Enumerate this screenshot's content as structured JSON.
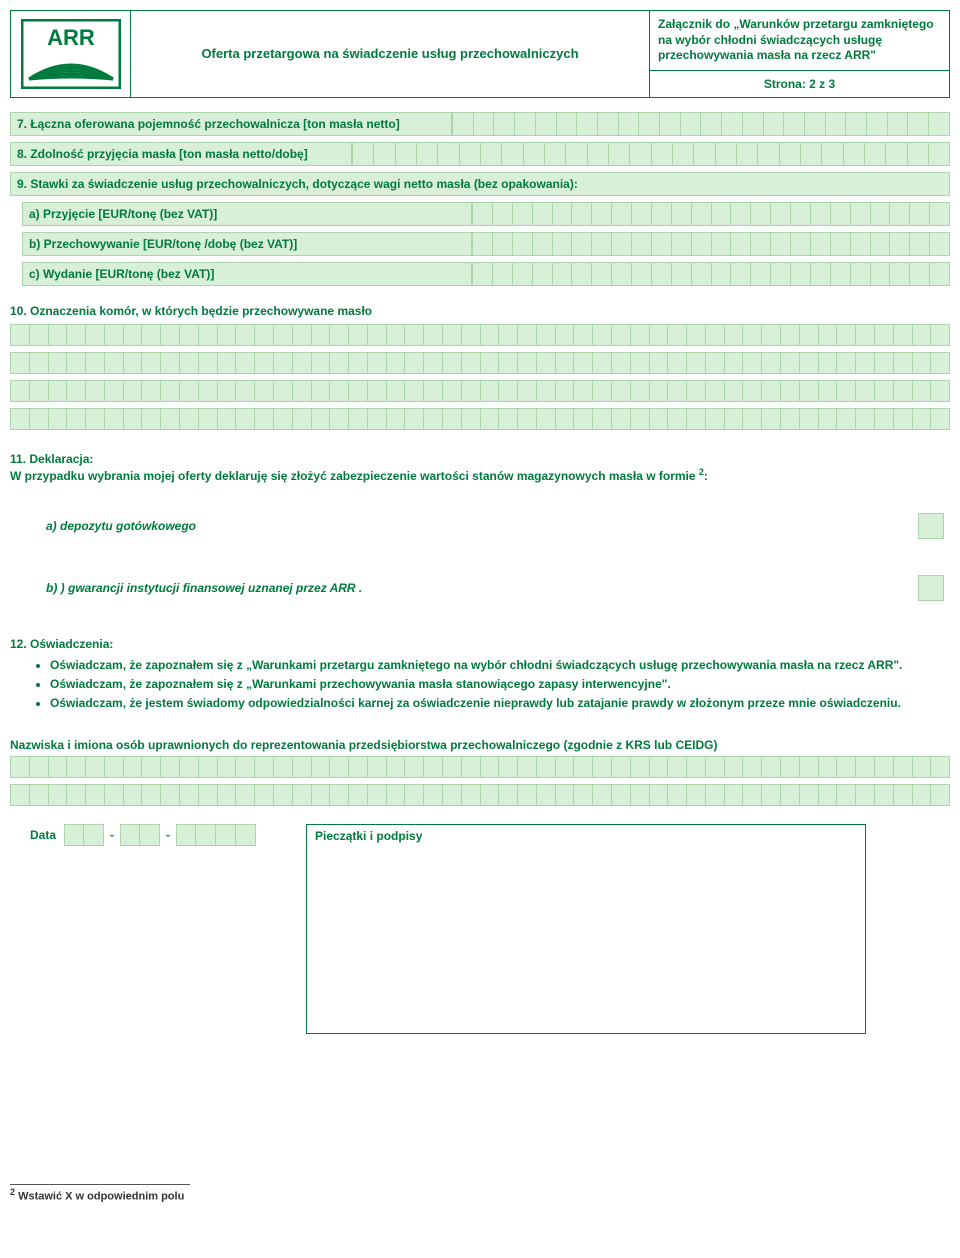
{
  "header": {
    "logo_text": "ARR",
    "title": "Oferta przetargowa na świadczenie usług przechowalniczych",
    "attachment": "Załącznik do „Warunków przetargu zamkniętego na wybór chłodni świadczących usługę przechowywania masła na rzecz ARR\"",
    "page": "Strona: 2 z 3"
  },
  "fields": {
    "f7": "7. Łączna oferowana pojemność przechowalnicza [ton masła netto]",
    "f8": "8. Zdolność przyjęcia masła [ton masła netto/dobę]",
    "f9": "9. Stawki za świadczenie usług przechowalniczych, dotyczące wagi netto masła (bez opakowania):",
    "f9a": "a) Przyjęcie [EUR/tonę (bez VAT)]",
    "f9b": "b) Przechowywanie [EUR/tonę /dobę (bez VAT)]",
    "f9c": "c) Wydanie [EUR/tonę (bez VAT)]",
    "f10": "10. Oznaczenia komór, w których będzie przechowywane masło"
  },
  "declaration": {
    "title": "11. Deklaracja:",
    "text": "W przypadku wybrania mojej oferty deklaruję się złożyć zabezpieczenie  wartości stanów magazynowych masła w formie ",
    "sup": "2",
    "opt_a": "a) depozytu gotówkowego",
    "opt_b": "b) ) gwarancji instytucji finansowej uznanej przez ARR ."
  },
  "statements": {
    "title": "12. Oświadczenia:",
    "items": [
      "Oświadczam, że zapoznałem się z „Warunkami przetargu zamkniętego na wybór chłodni świadczących usługę przechowywania masła na rzecz ARR\".",
      "Oświadczam, że zapoznałem się z „Warunkami przechowywania masła stanowiącego zapasy interwencyjne\".",
      "Oświadczam, że jestem świadomy odpowiedzialności karnej za oświadczenie nieprawdy lub zatajanie prawdy w złożonym przeze mnie oświadczeniu."
    ]
  },
  "names_title": "Nazwiska i imiona osób uprawnionych do reprezentowania przedsiębiorstwa przechowalniczego (zgodnie z KRS lub CEIDG)",
  "date_label": "Data",
  "sig_label": "Pieczątki i podpisy",
  "footnote": "Wstawić X w odpowiednim polu",
  "footnote_num": "2",
  "colors": {
    "green": "#007a3d",
    "cell_bg": "#d8f0d8",
    "cell_border": "#aad4aa"
  },
  "grid": {
    "narrow_cells": 24,
    "wide_cells": 50,
    "f7_label_w": 442,
    "f8_label_w": 342
  }
}
